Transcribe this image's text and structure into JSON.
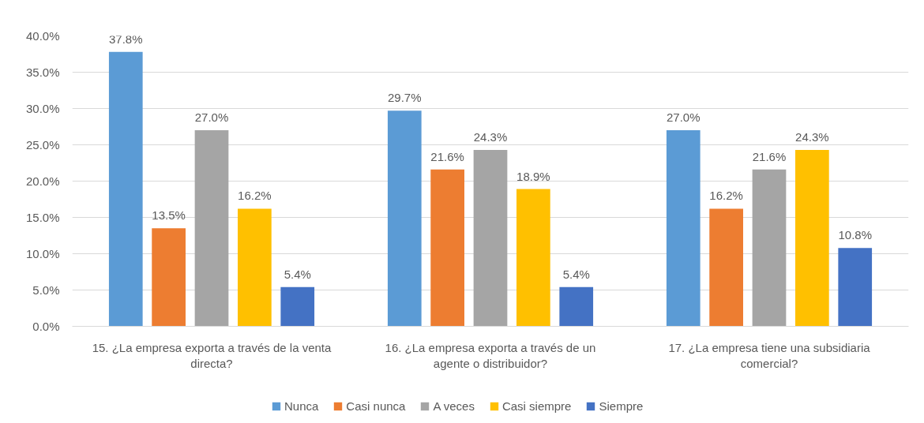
{
  "chart_data": {
    "type": "bar",
    "categories": [
      "15. ¿La empresa exporta a través de la venta directa?",
      "16. ¿La empresa exporta a través de un agente o distribuidor?",
      "17. ¿La empresa tiene una subsidiaria comercial?"
    ],
    "series": [
      {
        "name": "Nunca",
        "color": "#5b9bd5",
        "values": [
          37.8,
          29.7,
          27.0
        ],
        "value_labels": [
          "37.8%",
          "29.7%",
          "27.0%"
        ]
      },
      {
        "name": "Casi nunca",
        "color": "#ed7d31",
        "values": [
          13.5,
          21.6,
          16.2
        ],
        "value_labels": [
          "13.5%",
          "21.6%",
          "16.2%"
        ]
      },
      {
        "name": "A veces",
        "color": "#a5a5a5",
        "values": [
          27.0,
          24.3,
          21.6
        ],
        "value_labels": [
          "27.0%",
          "24.3%",
          "21.6%"
        ]
      },
      {
        "name": "Casi siempre",
        "color": "#ffc000",
        "values": [
          16.2,
          18.9,
          24.3
        ],
        "value_labels": [
          "16.2%",
          "18.9%",
          "24.3%"
        ]
      },
      {
        "name": "Siempre",
        "color": "#4472c4",
        "values": [
          5.4,
          5.4,
          10.8
        ],
        "value_labels": [
          "5.4%",
          "5.4%",
          "10.8%"
        ]
      }
    ],
    "ylim": [
      0,
      40
    ],
    "yticks": [
      {
        "value": 0,
        "label": "0.0%"
      },
      {
        "value": 5,
        "label": "5.0%"
      },
      {
        "value": 10,
        "label": "10.0%"
      },
      {
        "value": 15,
        "label": "15.0%"
      },
      {
        "value": 20,
        "label": "20.0%"
      },
      {
        "value": 25,
        "label": "25.0%"
      },
      {
        "value": 30,
        "label": "30.0%"
      },
      {
        "value": 35,
        "label": "35.0%"
      },
      {
        "value": 40,
        "label": "40.0%"
      }
    ],
    "grid": "y",
    "legend": "bottom"
  }
}
